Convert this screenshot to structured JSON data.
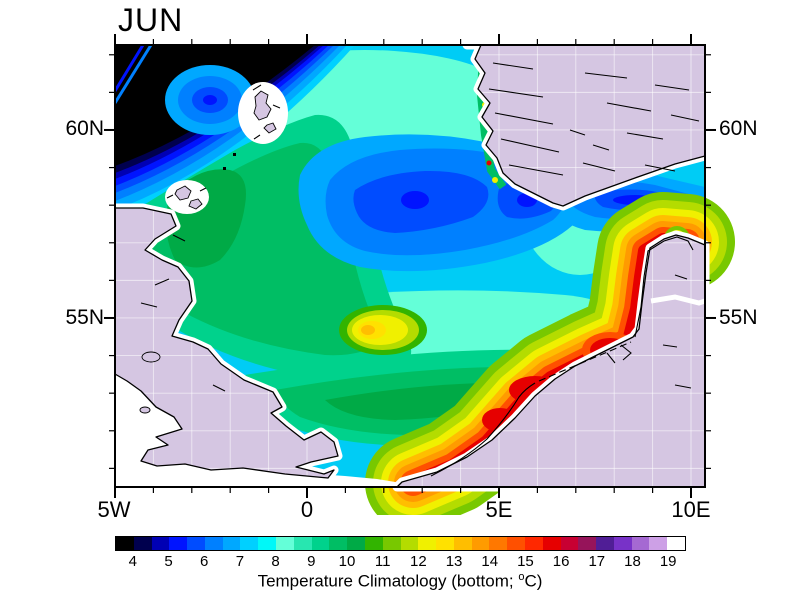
{
  "title": "JUN",
  "axes": {
    "left": [
      {
        "label": "60N",
        "lat": 60
      },
      {
        "label": "55N",
        "lat": 55
      }
    ],
    "right": [
      {
        "label": "60N",
        "lat": 60
      },
      {
        "label": "55N",
        "lat": 55
      }
    ],
    "bottom": [
      {
        "label": "5W",
        "lon": -5
      },
      {
        "label": "0",
        "lon": 0
      },
      {
        "label": "5E",
        "lon": 5
      },
      {
        "label": "10E",
        "lon": 10
      }
    ]
  },
  "colorbar": {
    "tick_labels": [
      "4",
      "5",
      "6",
      "7",
      "8",
      "9",
      "10",
      "11",
      "12",
      "13",
      "14",
      "15",
      "16",
      "17",
      "18",
      "19"
    ],
    "colors": [
      "#000000",
      "#00004e",
      "#0000b4",
      "#0014ff",
      "#004cff",
      "#0080ff",
      "#00a8ff",
      "#00d0ff",
      "#00f8f8",
      "#64ffd8",
      "#28e6b0",
      "#00d28c",
      "#00be64",
      "#00aa46",
      "#32b400",
      "#78c800",
      "#b4dc00",
      "#f0f000",
      "#ffe100",
      "#ffbe00",
      "#ff9b00",
      "#ff7800",
      "#ff5000",
      "#ff2800",
      "#e60000",
      "#c80032",
      "#96145a",
      "#501e96",
      "#7832c8",
      "#a569d2",
      "#cda0e6",
      "#ffffff"
    ],
    "caption_prefix": "Temperature Climatology (bottom; ",
    "caption_degree": "o",
    "caption_suffix": "C)"
  },
  "chart_data": {
    "type": "heatmap",
    "subtype": "filled-contour-map",
    "title": "JUN",
    "variable": "Temperature Climatology (bottom; °C)",
    "region": "North Sea",
    "lon_range_deg": [
      -5,
      10.4
    ],
    "lat_range_deg": [
      50.5,
      62.3
    ],
    "x_ticks": [
      "5W",
      "0",
      "5E",
      "10E"
    ],
    "y_ticks": [
      "55N",
      "60N"
    ],
    "contour_levels_c": {
      "min": 4,
      "max": 19,
      "step": 0.5
    },
    "palette": [
      "#000000",
      "#00004e",
      "#0000b4",
      "#0014ff",
      "#004cff",
      "#0080ff",
      "#00a8ff",
      "#00d0ff",
      "#00f8f8",
      "#64ffd8",
      "#28e6b0",
      "#00d28c",
      "#00be64",
      "#00aa46",
      "#32b400",
      "#78c800",
      "#b4dc00",
      "#f0f000",
      "#ffe100",
      "#ffbe00",
      "#ff9b00",
      "#ff7800",
      "#ff5000",
      "#ff2800",
      "#e60000",
      "#c80032",
      "#96145a",
      "#501e96",
      "#7832c8",
      "#a569d2",
      "#cda0e6",
      "#ffffff"
    ],
    "land_color": "#d5c6e2",
    "no_data_color": "#ffffff",
    "legend_position": "bottom",
    "features": [
      {
        "region": "Northwest corner north of Shetland (shelf-edge front)",
        "approx_value_c": "<4 off-scale (black) with tight 4-7 contour fringe"
      },
      {
        "region": "Central-northern North Sea deep pool",
        "approx_value_c": "5.5-6.5"
      },
      {
        "region": "Skagerrak / Norwegian Trench band south of Norway",
        "approx_value_c": "5-7"
      },
      {
        "region": "Plateau east of Scotland, Orkney and Shetland",
        "approx_value_c": "8-10.5"
      },
      {
        "region": "Mid-sea transition belt around the cold pool",
        "approx_value_c": "7-8.5"
      },
      {
        "region": "Dogger Bank warm patch",
        "approx_value_c": "11.5-13.5"
      },
      {
        "region": "Southern North Sea belt",
        "approx_value_c": "9-12"
      },
      {
        "region": "Dutch / Belgian coastal strip",
        "approx_value_c": "13-16"
      },
      {
        "region": "Wadden Sea and German Bight coast",
        "approx_value_c": "14.5-16.5"
      },
      {
        "region": "Danish west coast strip up to Skagen",
        "approx_value_c": "13-16"
      },
      {
        "region": "Norwegian fjord-mouth fringe spots",
        "approx_value_c": "9-15"
      },
      {
        "region": "Land (Britain, Norway, Denmark, Germany, Netherlands, France)",
        "value": "masked lavender"
      },
      {
        "region": "Nearshore staircase cells, Irish Sea, English Channel",
        "value": "no data (white)"
      }
    ]
  }
}
